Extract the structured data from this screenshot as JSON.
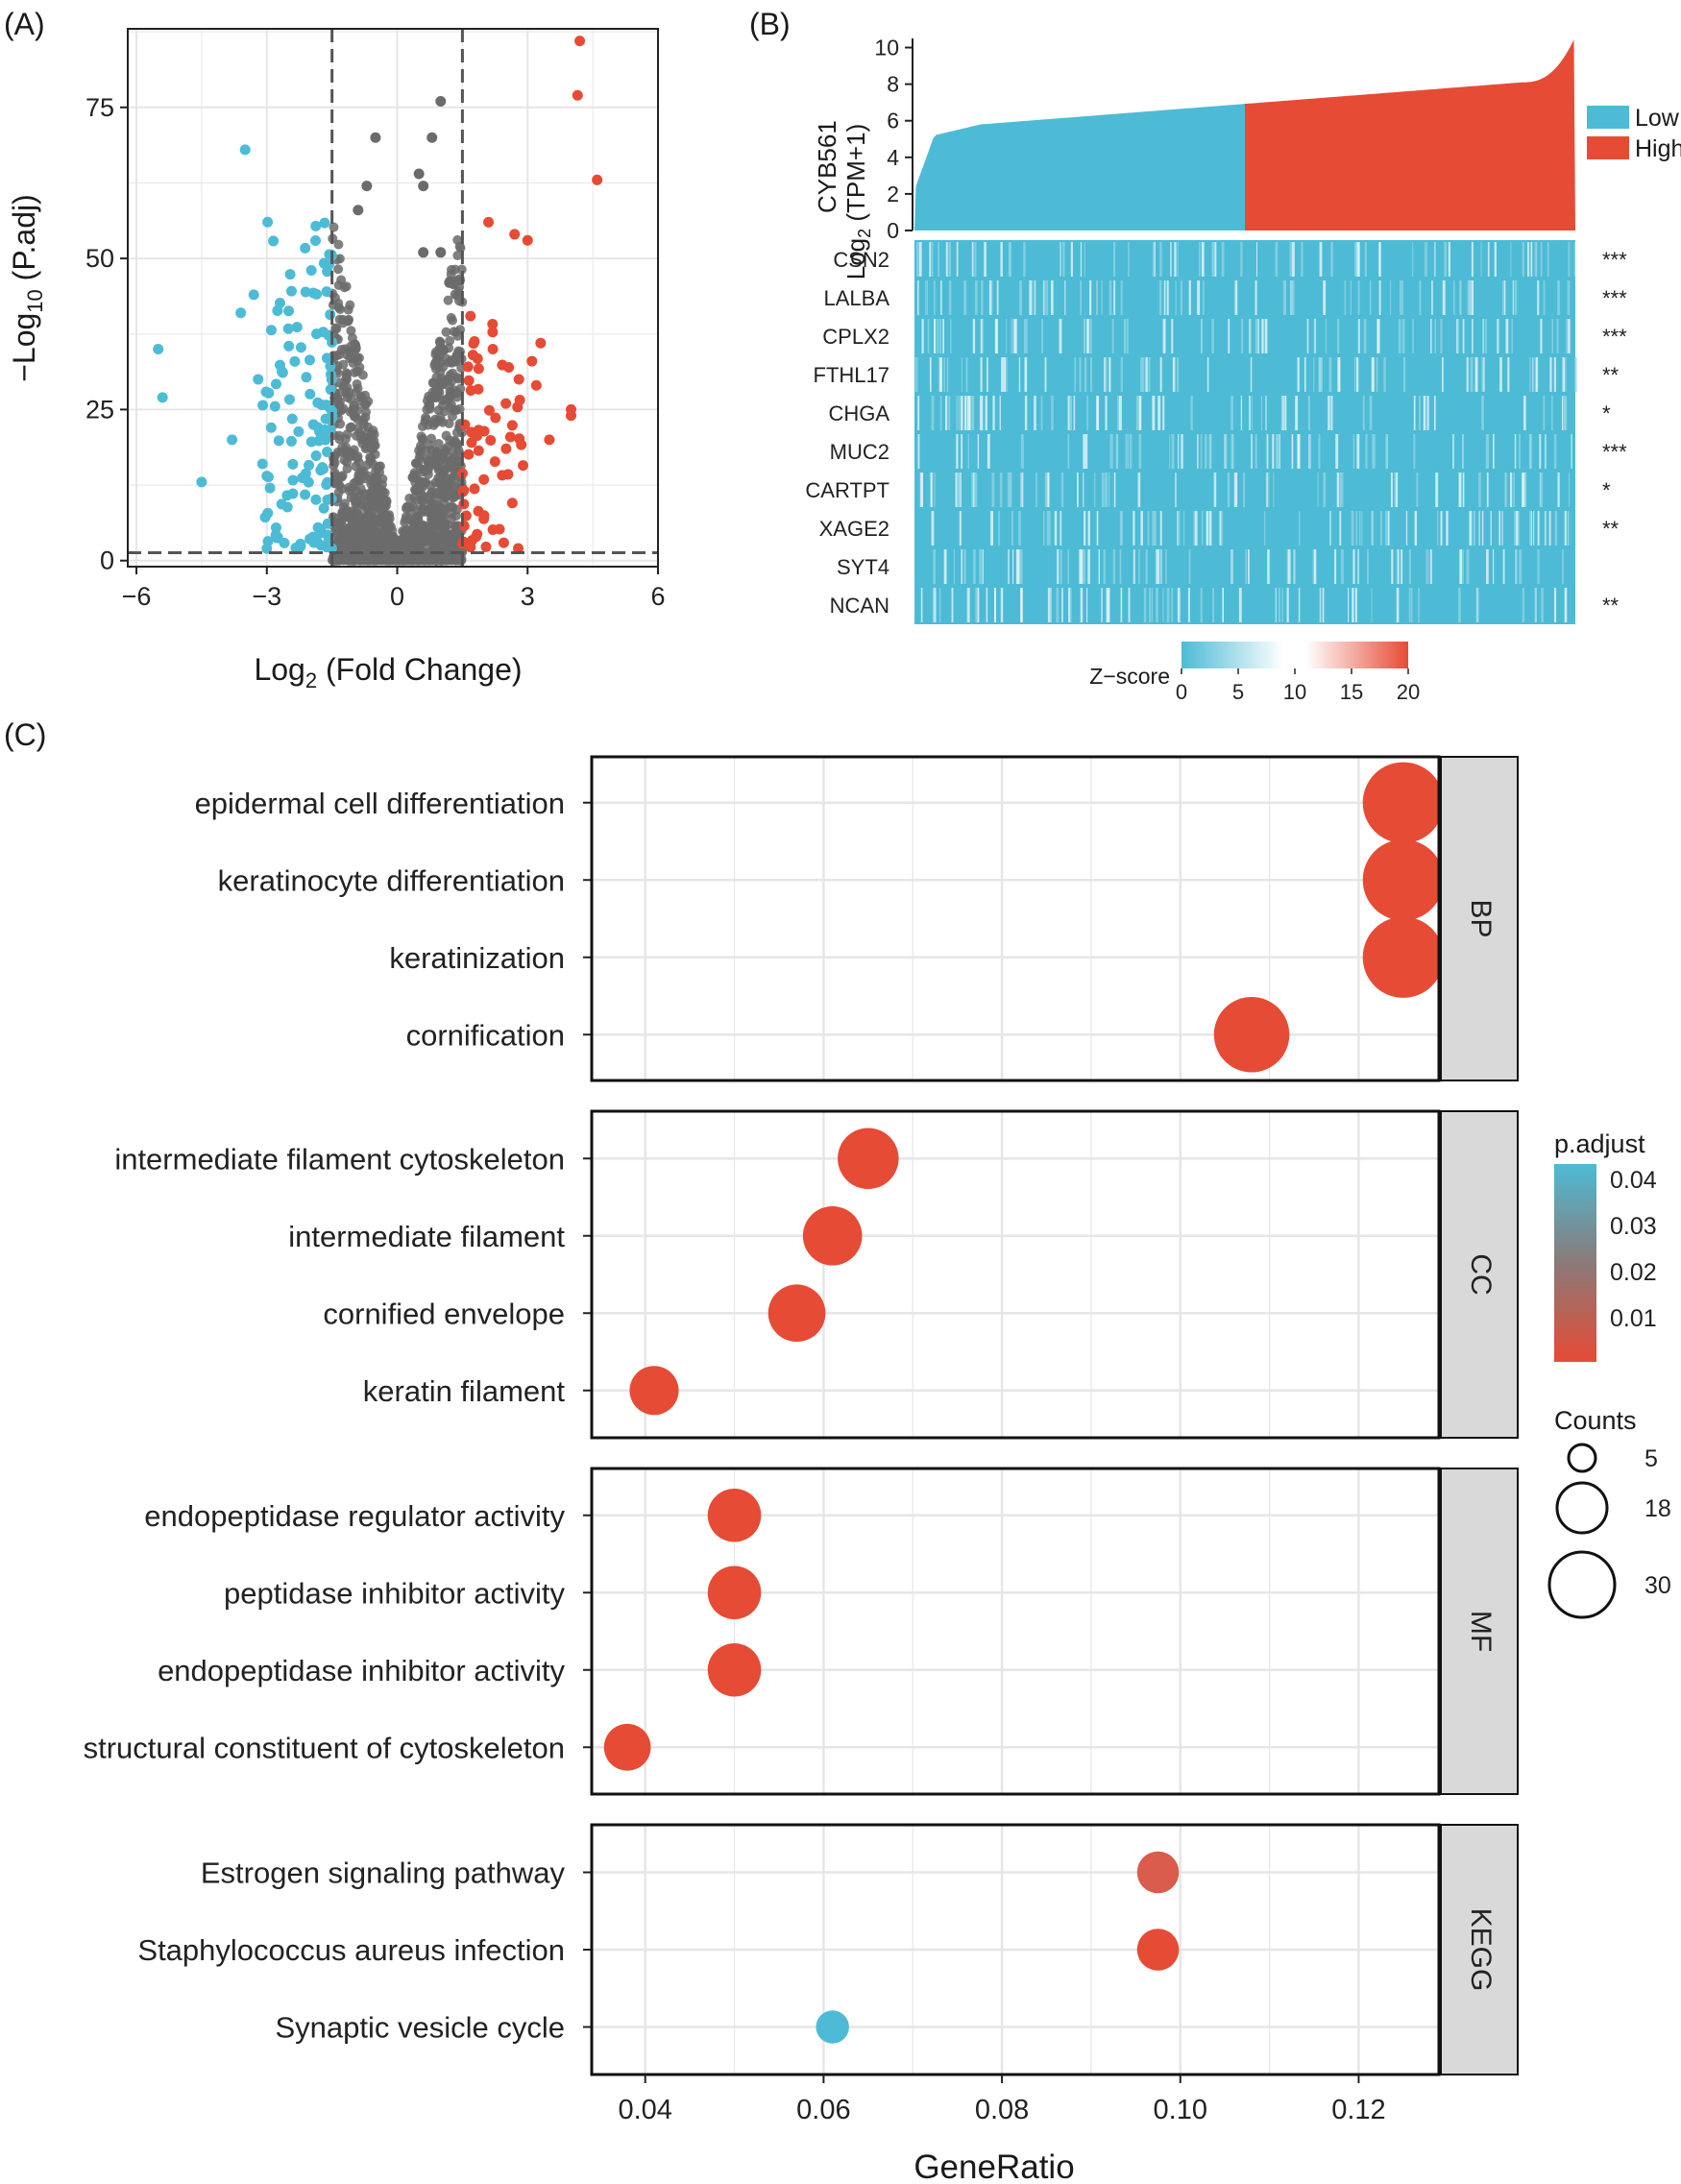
{
  "colors": {
    "up": "#e64b35",
    "down": "#4dbbd5",
    "ns": "#6b6b6b",
    "low": "#4dbbd5",
    "high": "#e64b35",
    "padj_high": "#4dbbd5",
    "padj_mid": "#7a7a7a",
    "padj_low": "#e64b35",
    "grid": "#e6e6e6",
    "strip": "#d9d9d9"
  },
  "chart_data": [
    {
      "type": "scatter",
      "panel_label": "(A)",
      "title": "",
      "xlabel": "Log2 (Fold Change)",
      "xlabel_main": "Log",
      "xlabel_sub": "2",
      "xlabel_rest": " (Fold Change)",
      "ylabel": "-Log10 (P.adj)",
      "ylabel_main": "−Log",
      "ylabel_sub": "10",
      "ylabel_rest": " (P.adj)",
      "xlim": [
        -6.2,
        6
      ],
      "ylim": [
        -1,
        88
      ],
      "xticks": [
        -6,
        -3,
        0,
        3,
        6
      ],
      "xtick_labels": [
        "−6",
        "−3",
        "0",
        "3",
        "6"
      ],
      "yticks": [
        0,
        25,
        50,
        75
      ],
      "ytick_labels": [
        "0",
        "25",
        "50",
        "75"
      ],
      "thresholds": {
        "log2fc": 1.5,
        "padj_line": 1.3
      },
      "grid": true,
      "highlighted_points": {
        "up": [
          [
            4.2,
            86
          ],
          [
            4.15,
            77
          ],
          [
            4.6,
            63
          ],
          [
            3.0,
            53
          ],
          [
            2.7,
            54
          ],
          [
            2.1,
            56
          ],
          [
            3.3,
            36
          ],
          [
            3.1,
            33
          ],
          [
            3.2,
            29
          ],
          [
            4.0,
            25
          ],
          [
            4.0,
            24
          ],
          [
            3.5,
            20
          ],
          [
            2.2,
            35
          ],
          [
            2.8,
            30
          ],
          [
            2.5,
            26
          ]
        ],
        "down": [
          [
            -3.5,
            68
          ],
          [
            -5.5,
            35
          ],
          [
            -5.4,
            27
          ],
          [
            -3.8,
            20
          ],
          [
            -4.5,
            13
          ],
          [
            -3.3,
            44
          ],
          [
            -3.6,
            41
          ],
          [
            -3.2,
            30
          ],
          [
            -2.9,
            22
          ],
          [
            -3.1,
            16
          ],
          [
            -3.0,
            14
          ],
          [
            -3.0,
            2
          ]
        ],
        "ns": [
          [
            -0.5,
            70
          ],
          [
            1.0,
            76
          ],
          [
            0.8,
            70
          ],
          [
            0.5,
            64
          ],
          [
            0.6,
            62
          ],
          [
            -0.7,
            62
          ],
          [
            -0.9,
            58
          ],
          [
            1.2,
            46
          ],
          [
            0.6,
            51
          ],
          [
            1.0,
            51
          ]
        ]
      }
    },
    {
      "type": "heatmap",
      "panel_label": "(B)",
      "top_bar": {
        "ylabel_gene": "CYB561",
        "ylabel_main": "Log",
        "ylabel_sub": "2",
        "ylabel_rest": " (TPM+1)",
        "ylim": [
          0,
          10.5
        ],
        "yticks": [
          0,
          2,
          4,
          6,
          8,
          10
        ],
        "split_fraction": 0.5
      },
      "legend": {
        "low": "Low",
        "high": "High"
      },
      "rows": [
        "CSN2",
        "LALBA",
        "CPLX2",
        "FTHL17",
        "CHGA",
        "MUC2",
        "CARTPT",
        "XAGE2",
        "SYT4",
        "NCAN"
      ],
      "significance": [
        "***",
        "***",
        "***",
        "**",
        "*",
        "***",
        "*",
        "**",
        "",
        "**"
      ],
      "colorbar": {
        "label": "Z−score",
        "range": [
          0,
          20
        ],
        "ticks": [
          0,
          5,
          10,
          15,
          20
        ]
      }
    },
    {
      "type": "scatter",
      "subtype": "dotplot",
      "panel_label": "(C)",
      "xlabel": "GeneRatio",
      "xlim": [
        0.034,
        0.129
      ],
      "xticks": [
        0.04,
        0.06,
        0.08,
        0.1,
        0.12
      ],
      "xtick_labels": [
        "0.04",
        "0.06",
        "0.08",
        "0.10",
        "0.12"
      ],
      "facets": [
        {
          "name": "BP",
          "terms": [
            {
              "label": "epidermal cell differentiation",
              "ratio": 0.125,
              "count": 30,
              "padj": 0.001
            },
            {
              "label": "keratinocyte differentiation",
              "ratio": 0.125,
              "count": 30,
              "padj": 0.001
            },
            {
              "label": "keratinization",
              "ratio": 0.125,
              "count": 30,
              "padj": 0.001
            },
            {
              "label": "cornification",
              "ratio": 0.108,
              "count": 26,
              "padj": 0.001
            }
          ]
        },
        {
          "name": "CC",
          "terms": [
            {
              "label": "intermediate filament cytoskeleton",
              "ratio": 0.065,
              "count": 17,
              "padj": 0.001
            },
            {
              "label": "intermediate filament",
              "ratio": 0.061,
              "count": 16,
              "padj": 0.001
            },
            {
              "label": "cornified envelope",
              "ratio": 0.057,
              "count": 15,
              "padj": 0.001
            },
            {
              "label": "keratin filament",
              "ratio": 0.041,
              "count": 11,
              "padj": 0.001
            }
          ]
        },
        {
          "name": "MF",
          "terms": [
            {
              "label": "endopeptidase regulator activity",
              "ratio": 0.05,
              "count": 13,
              "padj": 0.002
            },
            {
              "label": "peptidase inhibitor activity",
              "ratio": 0.05,
              "count": 13,
              "padj": 0.002
            },
            {
              "label": "endopeptidase inhibitor activity",
              "ratio": 0.05,
              "count": 13,
              "padj": 0.002
            },
            {
              "label": "structural constituent of cytoskeleton",
              "ratio": 0.038,
              "count": 10,
              "padj": 0.002
            }
          ]
        },
        {
          "name": "KEGG",
          "terms": [
            {
              "label": "Estrogen signaling pathway",
              "ratio": 0.0975,
              "count": 8,
              "padj": 0.008
            },
            {
              "label": "Staphylococcus aureus infection",
              "ratio": 0.0975,
              "count": 8,
              "padj": 0.003
            },
            {
              "label": "Synaptic vesicle cycle",
              "ratio": 0.061,
              "count": 5,
              "padj": 0.043
            }
          ]
        }
      ],
      "legend_padj": {
        "title": "p.adjust",
        "ticks": [
          "0.04",
          "0.03",
          "0.02",
          "0.01"
        ]
      },
      "legend_counts": {
        "title": "Counts",
        "values": [
          5,
          18,
          30
        ]
      }
    }
  ]
}
